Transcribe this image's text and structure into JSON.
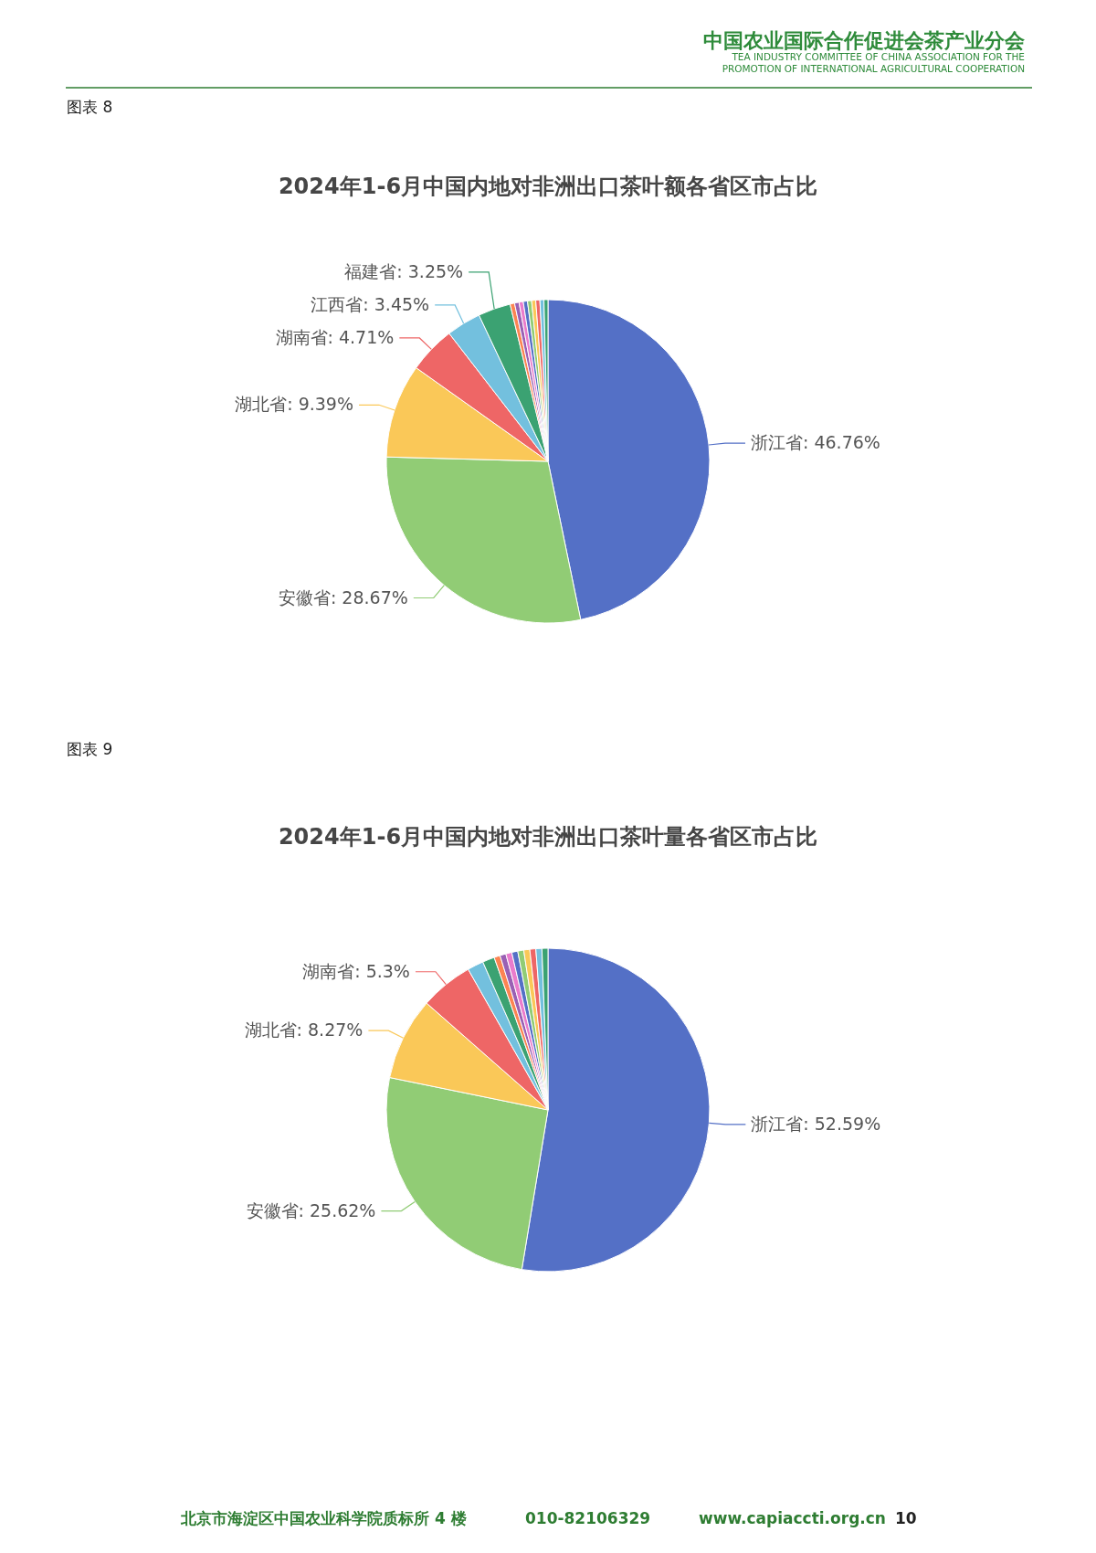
{
  "chart_data": [
    {
      "type": "pie",
      "title": "2024年1-6月中国内地对非洲出口茶叶额各省区市占比",
      "annotations": [
        "中国农业国际合作促进会茶产业分会",
        "TEA INDUSTRY COMMITTEE OF CHINA ASSOCIATION FOR THE",
        "PROMOTION OF INTERNATIONAL AGRICULTURAL COOPERATION",
        "图表 8"
      ],
      "categories": [
        "浙江省",
        "安徽省",
        "湖北省",
        "湖南省",
        "江西省",
        "福建省",
        null,
        null,
        null,
        null,
        null,
        null,
        null,
        null,
        null
      ],
      "values": [
        46.76,
        28.67,
        9.39,
        4.71,
        3.45,
        3.25,
        0.45,
        0.45,
        0.42,
        0.42,
        0.41,
        0.41,
        0.41,
        0.4,
        0.4
      ],
      "value_labels": [
        "46.76%",
        "28.67%",
        "9.39%",
        "4.71%",
        "3.45%",
        "3.25%",
        null,
        null,
        null,
        null,
        null,
        null,
        null,
        null,
        null
      ],
      "colors": [
        "#5470c6",
        "#91cc75",
        "#fac858",
        "#ee6666",
        "#73c0de",
        "#3ba272",
        "#fc8452",
        "#9a60b4",
        "#ea7ccc",
        "#5470c6",
        "#91cc75",
        "#fac858",
        "#ee6666",
        "#73c0de",
        "#3ba272"
      ]
    },
    {
      "type": "pie",
      "title": "2024年1-6月中国内地对非洲出口茶叶量各省区市占比",
      "annotations": [
        "图表 9",
        "北京市海淀区中国农业科学院质标所 4 楼",
        "010-82106329",
        "www.capiaccti.org.cn",
        "10"
      ],
      "categories": [
        "浙江省",
        "安徽省",
        "湖北省",
        "湖南省",
        null,
        null,
        null,
        null,
        null,
        null,
        null,
        null,
        null,
        null,
        null
      ],
      "values": [
        52.59,
        25.62,
        8.27,
        5.3,
        1.62,
        1.2,
        0.6,
        0.6,
        0.6,
        0.6,
        0.6,
        0.6,
        0.6,
        0.6,
        0.6
      ],
      "value_labels": [
        "52.59%",
        "25.62%",
        "8.27%",
        "5.3%",
        null,
        null,
        null,
        null,
        null,
        null,
        null,
        null,
        null,
        null,
        null
      ],
      "colors": [
        "#5470c6",
        "#91cc75",
        "#fac858",
        "#ee6666",
        "#73c0de",
        "#3ba272",
        "#fc8452",
        "#9a60b4",
        "#ea7ccc",
        "#5470c6",
        "#91cc75",
        "#fac858",
        "#ee6666",
        "#73c0de",
        "#3ba272"
      ]
    }
  ]
}
